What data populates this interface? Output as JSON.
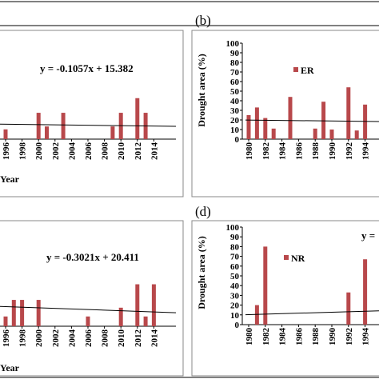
{
  "chart_data": [
    {
      "id": "left-top",
      "type": "bar",
      "xlabel": "Year",
      "x_ticks": [
        "1996",
        "1998",
        "2000",
        "2002",
        "2004",
        "2006",
        "2008",
        "2010",
        "2012",
        "2014"
      ],
      "equation": "y = -0.1057x + 15.382",
      "bar_color": "#b8484b",
      "series": [
        {
          "x": [
            1996,
            2000,
            2001,
            2003,
            2009,
            2010,
            2012,
            2013
          ],
          "values": [
            10,
            27,
            13,
            27,
            13,
            27,
            42,
            27
          ]
        }
      ],
      "trend": {
        "slope": -0.1057,
        "intercept": 15.382,
        "x_start_index": 1
      }
    },
    {
      "id": "b",
      "type": "bar",
      "panel_label": "(b)",
      "ylabel": "Drought area (%)",
      "ylim": [
        0,
        100
      ],
      "y_ticks": [
        "0",
        "10",
        "20",
        "30",
        "40",
        "50",
        "60",
        "70",
        "80",
        "90",
        "100"
      ],
      "x_ticks": [
        "1980",
        "1982",
        "1984",
        "1986",
        "1988",
        "1990",
        "1992",
        "1994"
      ],
      "legend": "ER",
      "bar_color": "#b8484b",
      "series": [
        {
          "x": [
            1980,
            1981,
            1982,
            1983,
            1985,
            1988,
            1989,
            1990,
            1992,
            1993,
            1994
          ],
          "values": [
            25,
            33,
            22,
            11,
            44,
            11,
            39,
            10,
            54,
            9,
            36
          ]
        }
      ],
      "trend": {
        "slope": -0.1,
        "intercept": 20,
        "x_start_index": 1
      }
    },
    {
      "id": "left-bottom",
      "type": "bar",
      "xlabel": "Year",
      "x_ticks": [
        "1996",
        "1998",
        "2000",
        "2002",
        "2004",
        "2006",
        "2008",
        "2010",
        "2012",
        "2014"
      ],
      "equation": "y = -0.3021x + 20.411",
      "bar_color": "#b8484b",
      "series": [
        {
          "x": [
            1996,
            1997,
            1998,
            2000,
            2006,
            2010,
            2012,
            2013,
            2014
          ],
          "values": [
            10,
            27,
            27,
            27,
            10,
            19,
            43,
            10,
            43
          ]
        }
      ],
      "trend": {
        "slope": -0.3021,
        "intercept": 20.411,
        "x_start_index": 1
      }
    },
    {
      "id": "d",
      "type": "bar",
      "panel_label": "(d)",
      "ylabel": "Drought area (%)",
      "ylim": [
        0,
        100
      ],
      "y_ticks": [
        "0",
        "10",
        "20",
        "30",
        "40",
        "50",
        "60",
        "70",
        "80",
        "90",
        "100"
      ],
      "x_ticks": [
        "1980",
        "1982",
        "1984",
        "1986",
        "1988",
        "1990",
        "1992",
        "1994"
      ],
      "legend": "NR",
      "equation_partial": "y =",
      "bar_color": "#b8484b",
      "series": [
        {
          "x": [
            1981,
            1982,
            1992,
            1994
          ],
          "values": [
            20,
            80,
            33,
            67
          ]
        }
      ],
      "trend": {
        "slope": 0.25,
        "intercept": 10,
        "x_start_index": 1
      }
    }
  ]
}
